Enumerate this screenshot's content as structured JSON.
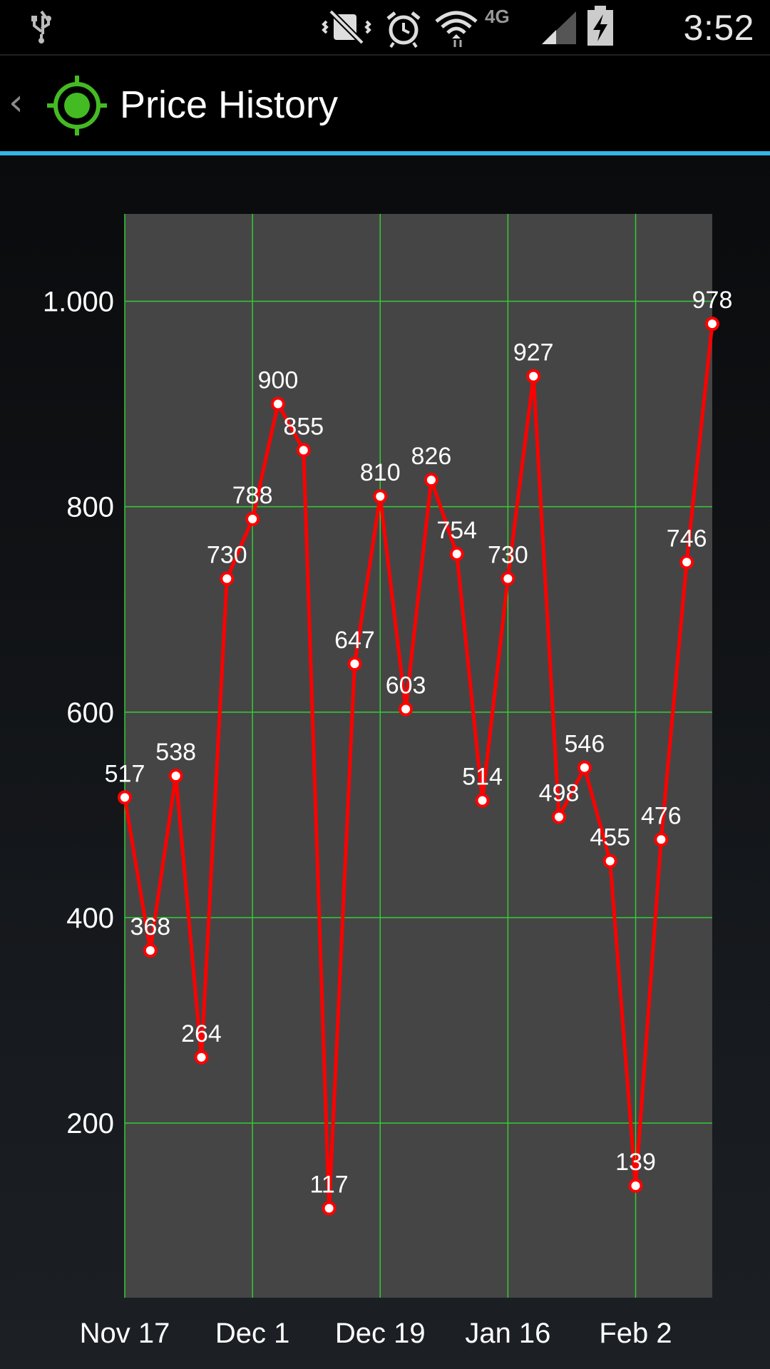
{
  "status_bar": {
    "time": "3:52 PM",
    "network": "4G",
    "icons": [
      "usb-icon",
      "mute-vibrate-icon",
      "alarm-icon",
      "wifi-icon",
      "network-4g-lte-icon",
      "signal-icon",
      "battery-charging-icon"
    ]
  },
  "action_bar": {
    "title": "Price History",
    "back_icon": "back-caret-icon",
    "app_icon": "target-crosshair-icon"
  },
  "colors": {
    "accent": "#33b5e5",
    "line": "#ff0000",
    "grid": "#33cc33",
    "plot_bg": "#454545",
    "icon_green": "#44bb22"
  },
  "chart_data": {
    "type": "line",
    "title": "",
    "xlabel": "",
    "ylabel": "",
    "ylim": [
      30,
      1085
    ],
    "yticks": [
      200,
      400,
      600,
      800,
      1000
    ],
    "ytick_labels": [
      "200",
      "400",
      "600",
      "800",
      "1.000"
    ],
    "xtick_labels": [
      "Nov 17",
      "Dec 1",
      "Dec 19",
      "Jan 16",
      "Feb 2"
    ],
    "xtick_positions": [
      0,
      5,
      10,
      15,
      20
    ],
    "grid": true,
    "series": [
      {
        "values": [
          517,
          368,
          538,
          264,
          730,
          788,
          900,
          855,
          117,
          647,
          810,
          603,
          826,
          754,
          514,
          730,
          927,
          498,
          546,
          455,
          139,
          476,
          746,
          978
        ]
      }
    ]
  }
}
